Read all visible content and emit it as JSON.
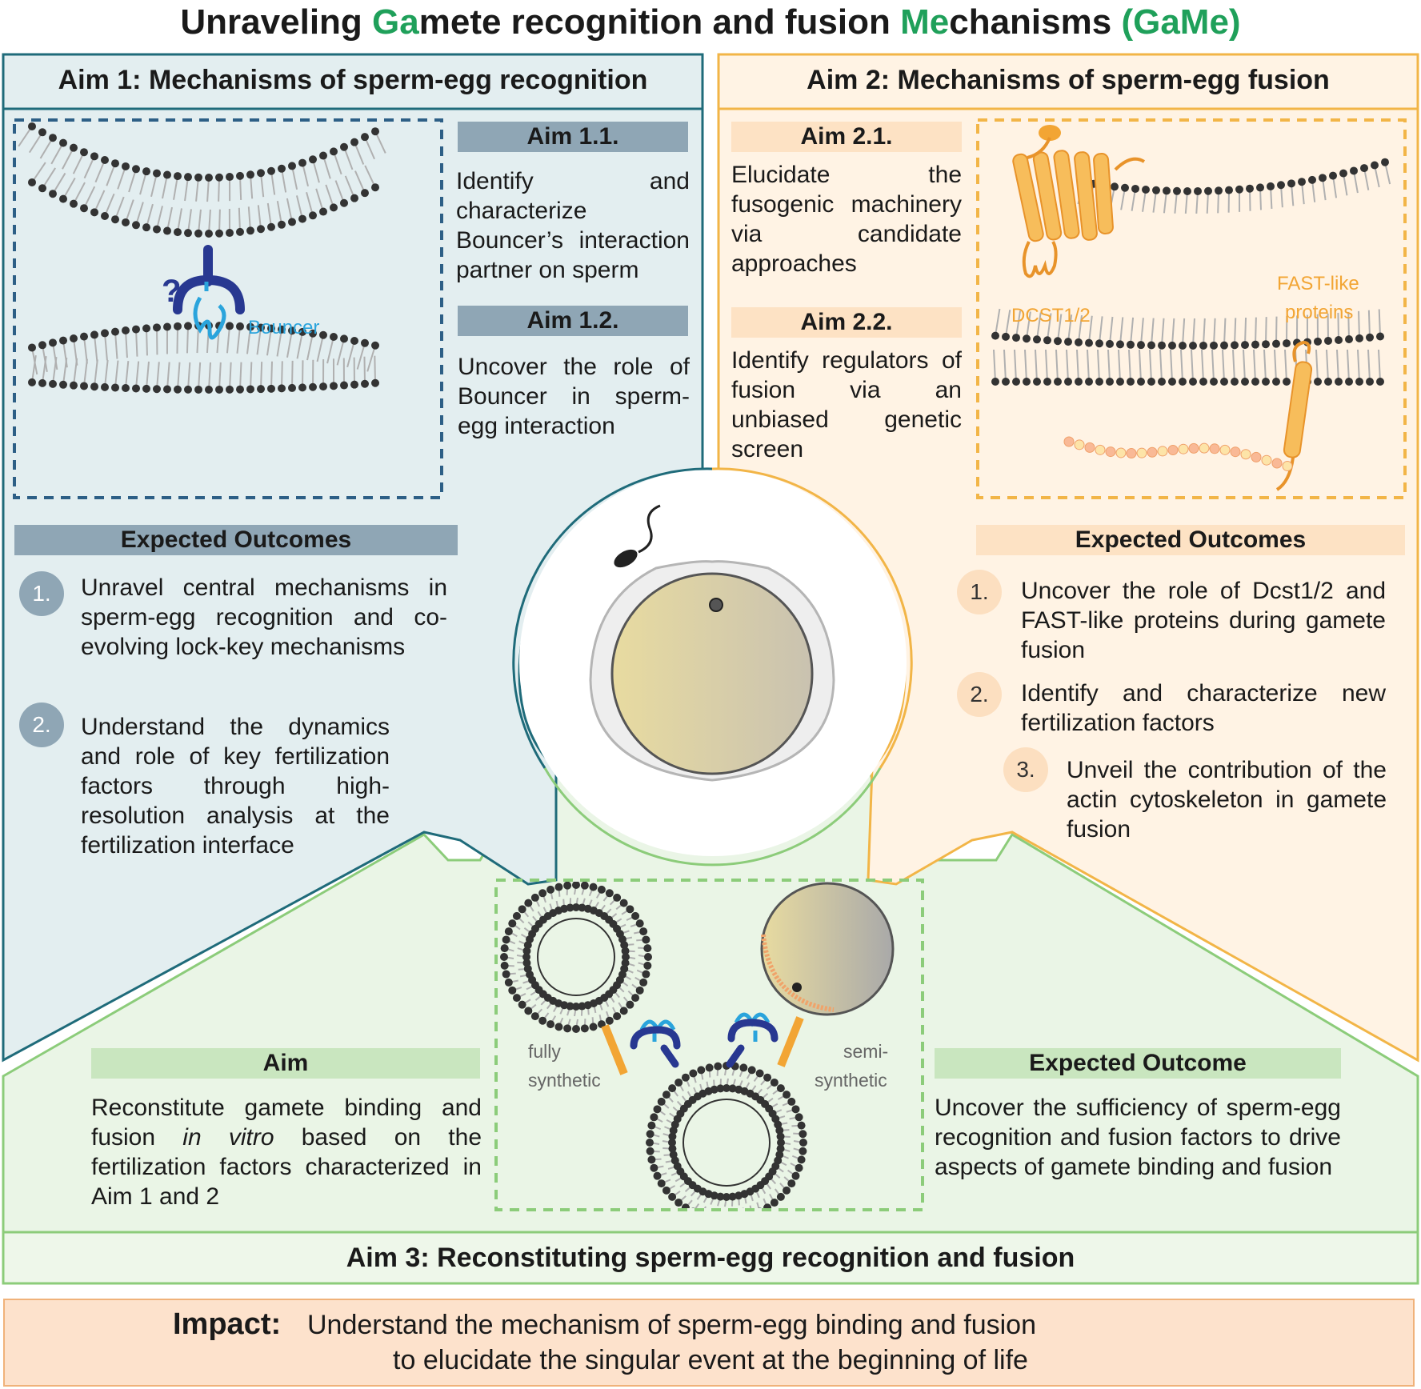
{
  "title": {
    "part1": "Unraveling ",
    "ga": "Ga",
    "part2": "mete recognition and fusion ",
    "me": "Me",
    "part3": "chanisms ",
    "acronym": "(GaMe)"
  },
  "aim1": {
    "header": "Aim 1: Mechanisms of sperm-egg recognition",
    "sub1": {
      "label": "Aim 1.1.",
      "text": "Identify and characterize Bouncer’s interaction partner on sperm"
    },
    "sub2": {
      "label": "Aim 1.2.",
      "text": "Uncover the role of Bouncer in sperm-egg interaction"
    },
    "diagram": {
      "question": "?",
      "bouncer_label": "Bouncer"
    },
    "outcomes": {
      "header": "Expected Outcomes",
      "items": [
        {
          "num": "1.",
          "text": "Unravel central mechanisms in sperm-egg recognition and co-evolving lock-key mechanisms"
        },
        {
          "num": "2.",
          "text": "Understand the dynamics and role of key fertilization factors through high-resolution analysis at the fertilization interface"
        }
      ]
    }
  },
  "aim2": {
    "header": "Aim 2: Mechanisms of sperm-egg fusion",
    "sub1": {
      "label": "Aim 2.1.",
      "text": "Elucidate the fusogenic machinery via candidate approaches"
    },
    "sub2": {
      "label": "Aim 2.2.",
      "text": "Identify regulators of fusion via an unbiased genetic screen"
    },
    "diagram": {
      "dcst_label": "DCST1/2",
      "fast_label_1": "FAST-like",
      "fast_label_2": "proteins"
    },
    "outcomes": {
      "header": "Expected Outcomes",
      "items": [
        {
          "num": "1.",
          "text": "Uncover the role of Dcst1/2 and FAST-like proteins during gamete fusion"
        },
        {
          "num": "2.",
          "text": "Identify and characterize new fertilization factors"
        },
        {
          "num": "3.",
          "text": "Unveil the contribution of the actin cytoskeleton in gamete fusion"
        }
      ]
    }
  },
  "aim3": {
    "header": "Aim 3: Reconstituting sperm-egg recognition and fusion",
    "aim_label": "Aim",
    "aim_text_1": "Reconstitute gamete binding and fusion ",
    "aim_text_italic": "in vitro",
    "aim_text_2": " based on the fertilization factors characterized in Aim 1 and 2",
    "diagram": {
      "left_label_1": "fully",
      "left_label_2": "synthetic",
      "right_label_1": "semi-",
      "right_label_2": "synthetic"
    },
    "outcome_label": "Expected Outcome",
    "outcome_text": "Uncover the sufficiency of sperm-egg recognition and fusion factors to drive aspects of gamete binding and fusion"
  },
  "impact": {
    "label": "Impact:",
    "line1": "Understand the mechanism of sperm-egg binding and fusion",
    "line2": "to elucidate the singular event at the beginning of life"
  },
  "colors": {
    "green": "#1fa05a",
    "aim1_border": "#1f6b7a",
    "aim1_fill": "#e3eef0",
    "aim1_bar": "#8fa6b5",
    "aim2_border": "#f2b547",
    "aim2_fill": "#fff3e4",
    "aim2_bar": "#fde2c4",
    "aim3_border": "#8ccc7a",
    "aim3_fill": "#eaf5e6",
    "aim3_bar": "#c9e6bf",
    "impact_fill": "#fde2cc",
    "orange_protein": "#f2a534",
    "bouncer_blue": "#2aa4dc",
    "navy": "#283891"
  }
}
